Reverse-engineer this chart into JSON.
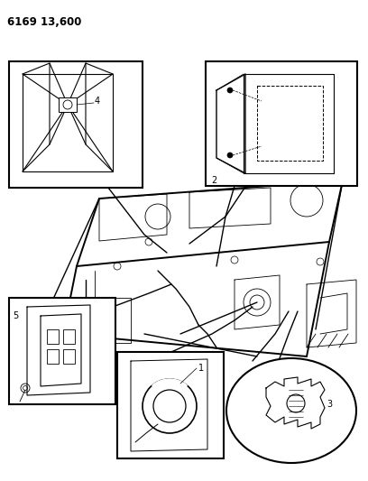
{
  "title": "6169 13,600",
  "background_color": "#ffffff",
  "line_color": "#000000",
  "fig_width": 4.08,
  "fig_height": 5.33,
  "dpi": 100,
  "title_fontsize": 8.5,
  "title_fontweight": "bold"
}
